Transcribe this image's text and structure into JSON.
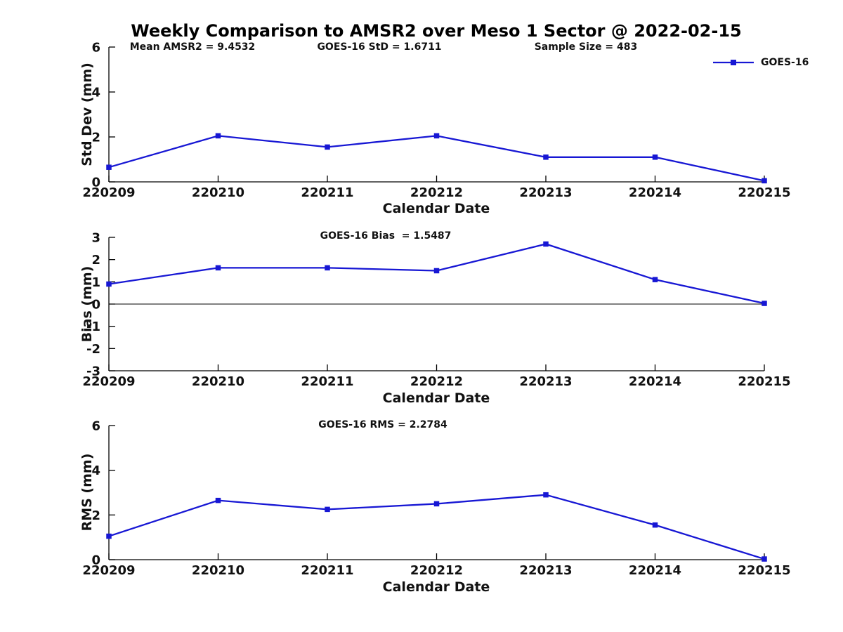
{
  "title": "Weekly Comparison to AMSR2 over Meso 1 Sector @ 2022-02-15",
  "colors": {
    "series": "#1717d4",
    "axis": "#000000",
    "text": "#111111"
  },
  "legend": {
    "label": "GOES-16",
    "position": "top-right"
  },
  "chart_data": [
    {
      "type": "line",
      "ylabel": "Std Dev (mm)",
      "xlabel": "Calendar Date",
      "categories": [
        "220209",
        "220210",
        "220211",
        "220212",
        "220213",
        "220214",
        "220215"
      ],
      "series": [
        {
          "name": "GOES-16",
          "marker": "square",
          "values": [
            0.65,
            2.05,
            1.55,
            2.05,
            1.1,
            1.1,
            0.05
          ]
        }
      ],
      "ylim": [
        0,
        6
      ],
      "yticks": [
        0,
        2,
        4,
        6
      ],
      "grid": false,
      "zero_line": false,
      "annotations": [
        "Mean AMSR2 = 9.4532",
        "GOES-16 StD = 1.6711",
        "Sample Size = 483"
      ]
    },
    {
      "type": "line",
      "ylabel": "Bias (mm)",
      "xlabel": "Calendar Date",
      "categories": [
        "220209",
        "220210",
        "220211",
        "220212",
        "220213",
        "220214",
        "220215"
      ],
      "series": [
        {
          "name": "GOES-16",
          "marker": "square",
          "values": [
            0.9,
            1.63,
            1.63,
            1.5,
            2.7,
            1.1,
            0.03
          ]
        }
      ],
      "ylim": [
        -3,
        3
      ],
      "yticks": [
        -3,
        -2,
        -1,
        0,
        1,
        2,
        3
      ],
      "grid": false,
      "zero_line": true,
      "annotations": [
        "GOES-16 Bias  = 1.5487"
      ]
    },
    {
      "type": "line",
      "ylabel": "RMS (mm)",
      "xlabel": "Calendar Date",
      "categories": [
        "220209",
        "220210",
        "220211",
        "220212",
        "220213",
        "220214",
        "220215"
      ],
      "series": [
        {
          "name": "GOES-16",
          "marker": "square",
          "values": [
            1.05,
            2.65,
            2.25,
            2.5,
            2.9,
            1.55,
            0.03
          ]
        }
      ],
      "ylim": [
        0,
        6
      ],
      "yticks": [
        0,
        2,
        4,
        6
      ],
      "grid": false,
      "zero_line": false,
      "annotations": [
        "GOES-16 RMS = 2.2784"
      ]
    }
  ]
}
